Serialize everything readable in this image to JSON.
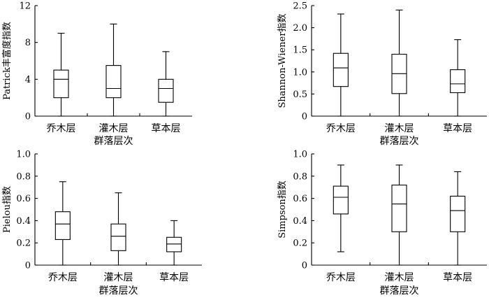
{
  "chart_data": [
    {
      "type": "box",
      "categories": [
        "乔木层",
        "灌木层",
        "草本层"
      ],
      "xlabel": "群落层次",
      "ylabel": "Patrick丰富度指数",
      "ylim": [
        0,
        12
      ],
      "yticks": [
        "0",
        "4",
        "8",
        "12"
      ],
      "grid": false,
      "boxes": [
        {
          "min": 0,
          "q1": 2,
          "median": 4,
          "q3": 5,
          "max": 9
        },
        {
          "min": 0,
          "q1": 2,
          "median": 3,
          "q3": 5.5,
          "max": 10
        },
        {
          "min": 0,
          "q1": 1.5,
          "median": 3,
          "q3": 4,
          "max": 7
        }
      ]
    },
    {
      "type": "box",
      "categories": [
        "乔木层",
        "灌木层",
        "草本层"
      ],
      "xlabel": "群落层次",
      "ylabel": "Shannon-Wiener指数",
      "ylim": [
        0,
        2.5
      ],
      "yticks": [
        "0",
        "0.5",
        "1.0",
        "1.5",
        "2.0",
        "2.5"
      ],
      "grid": false,
      "boxes": [
        {
          "min": 0,
          "q1": 0.67,
          "median": 1.09,
          "q3": 1.42,
          "max": 2.31
        },
        {
          "min": 0,
          "q1": 0.51,
          "median": 0.96,
          "q3": 1.4,
          "max": 2.4
        },
        {
          "min": 0,
          "q1": 0.53,
          "median": 0.73,
          "q3": 1.05,
          "max": 1.73
        }
      ]
    },
    {
      "type": "box",
      "categories": [
        "乔木层",
        "灌木层",
        "草本层"
      ],
      "xlabel": "群落层次",
      "ylabel": "Pielou指数",
      "ylim": [
        0,
        1.0
      ],
      "yticks": [
        "0",
        "0.2",
        "0.4",
        "0.6",
        "0.8",
        "1.0"
      ],
      "grid": false,
      "boxes": [
        {
          "min": 0,
          "q1": 0.23,
          "median": 0.37,
          "q3": 0.48,
          "max": 0.75
        },
        {
          "min": 0,
          "q1": 0.13,
          "median": 0.26,
          "q3": 0.37,
          "max": 0.65
        },
        {
          "min": 0,
          "q1": 0.12,
          "median": 0.19,
          "q3": 0.25,
          "max": 0.4
        }
      ]
    },
    {
      "type": "box",
      "categories": [
        "乔木层",
        "灌木层",
        "草本层"
      ],
      "xlabel": "群落层次",
      "ylabel": "Simpson指数",
      "ylim": [
        0,
        1.0
      ],
      "yticks": [
        "0",
        "0.2",
        "0.4",
        "0.6",
        "0.8",
        "1.0"
      ],
      "grid": false,
      "boxes": [
        {
          "min": 0.12,
          "q1": 0.46,
          "median": 0.61,
          "q3": 0.71,
          "max": 0.9
        },
        {
          "min": 0,
          "q1": 0.3,
          "median": 0.55,
          "q3": 0.72,
          "max": 0.9
        },
        {
          "min": 0,
          "q1": 0.3,
          "median": 0.49,
          "q3": 0.62,
          "max": 0.84
        }
      ]
    }
  ]
}
